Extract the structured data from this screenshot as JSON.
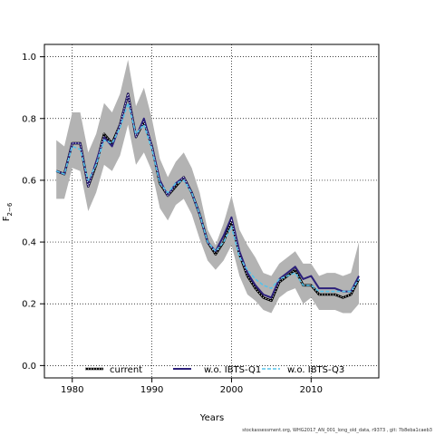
{
  "chart_data": {
    "type": "line",
    "xlabel": "Years",
    "ylabel": "F",
    "ylabel_sub": "2−6",
    "xlim": [
      1976.5,
      2018.5
    ],
    "ylim": [
      -0.04,
      1.04
    ],
    "xticks": [
      1980,
      1990,
      2000,
      2010
    ],
    "yticks": [
      0.0,
      0.2,
      0.4,
      0.6,
      0.8,
      1.0
    ],
    "ytick_labels": [
      "0.0",
      "0.2",
      "0.4",
      "0.6",
      "0.8",
      "1.0"
    ],
    "grid": true,
    "legend_position": "bottom",
    "x": [
      1978,
      1979,
      1980,
      1981,
      1982,
      1983,
      1984,
      1985,
      1986,
      1987,
      1988,
      1989,
      1990,
      1991,
      1992,
      1993,
      1994,
      1995,
      1996,
      1997,
      1998,
      1999,
      2000,
      2001,
      2002,
      2003,
      2004,
      2005,
      2006,
      2007,
      2008,
      2009,
      2010,
      2011,
      2012,
      2013,
      2014,
      2015,
      2016
    ],
    "band": {
      "upper": [
        0.73,
        0.71,
        0.82,
        0.82,
        0.69,
        0.75,
        0.85,
        0.82,
        0.88,
        0.99,
        0.84,
        0.9,
        0.8,
        0.67,
        0.61,
        0.66,
        0.69,
        0.64,
        0.56,
        0.44,
        0.39,
        0.46,
        0.55,
        0.44,
        0.39,
        0.35,
        0.3,
        0.29,
        0.33,
        0.35,
        0.37,
        0.33,
        0.33,
        0.29,
        0.3,
        0.3,
        0.29,
        0.3,
        0.4
      ],
      "lower": [
        0.54,
        0.54,
        0.64,
        0.63,
        0.5,
        0.56,
        0.65,
        0.63,
        0.68,
        0.78,
        0.65,
        0.69,
        0.63,
        0.51,
        0.47,
        0.52,
        0.54,
        0.49,
        0.41,
        0.34,
        0.31,
        0.34,
        0.39,
        0.29,
        0.23,
        0.21,
        0.18,
        0.17,
        0.22,
        0.24,
        0.25,
        0.2,
        0.22,
        0.18,
        0.18,
        0.18,
        0.17,
        0.17,
        0.2
      ],
      "color": "#b3b3b3"
    },
    "series": [
      {
        "name": "current",
        "color": "#000000",
        "style": "solid-dotted",
        "values": [
          0.63,
          0.62,
          0.72,
          0.72,
          0.58,
          0.65,
          0.75,
          0.72,
          0.78,
          0.88,
          0.74,
          0.79,
          0.71,
          0.59,
          0.55,
          0.58,
          0.61,
          0.56,
          0.49,
          0.4,
          0.36,
          0.4,
          0.47,
          0.36,
          0.29,
          0.25,
          0.22,
          0.21,
          0.27,
          0.29,
          0.31,
          0.26,
          0.26,
          0.23,
          0.23,
          0.23,
          0.22,
          0.23,
          0.28
        ]
      },
      {
        "name": "w.o. IBTS-Q1",
        "color": "#2b1f7a",
        "style": "solid",
        "values": [
          0.63,
          0.62,
          0.72,
          0.72,
          0.58,
          0.66,
          0.74,
          0.71,
          0.78,
          0.88,
          0.74,
          0.8,
          0.71,
          0.6,
          0.55,
          0.59,
          0.61,
          0.56,
          0.49,
          0.4,
          0.37,
          0.42,
          0.48,
          0.37,
          0.3,
          0.26,
          0.23,
          0.22,
          0.28,
          0.3,
          0.32,
          0.28,
          0.29,
          0.25,
          0.25,
          0.25,
          0.24,
          0.24,
          0.29
        ]
      },
      {
        "name": "w.o. IBTS-Q3",
        "color": "#56c3ea",
        "style": "dashed",
        "values": [
          0.63,
          0.62,
          0.71,
          0.7,
          0.6,
          0.65,
          0.73,
          0.72,
          0.77,
          0.85,
          0.75,
          0.78,
          0.7,
          0.59,
          0.56,
          0.59,
          0.6,
          0.56,
          0.49,
          0.4,
          0.37,
          0.4,
          0.45,
          0.35,
          0.31,
          0.28,
          0.26,
          0.25,
          0.28,
          0.29,
          0.3,
          0.26,
          0.26,
          0.24,
          0.24,
          0.24,
          0.24,
          0.24,
          0.28
        ]
      }
    ]
  },
  "footer": "stockassessment.org, WHG2017_AN_001_long_old_data, r9373 , git: 7b8eba1caeb3"
}
